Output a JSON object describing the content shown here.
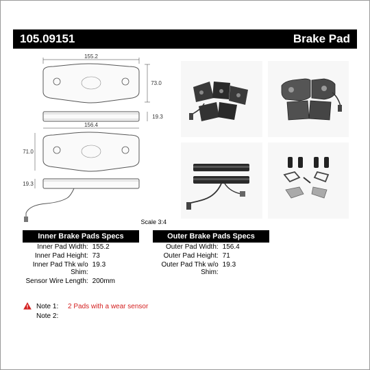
{
  "header": {
    "part_number": "105.09151",
    "product_type": "Brake Pad"
  },
  "diagram": {
    "top_width": "155.2",
    "top_height": "73.0",
    "top_thickness": "19.3",
    "mid_width": "156.4",
    "mid_height": "71.0",
    "bottom_thickness": "19.3",
    "scale": "Scale 3:4"
  },
  "specs": {
    "inner": {
      "title": "Inner Brake Pads Specs",
      "rows": [
        {
          "label": "Inner Pad Width:",
          "value": "155.2"
        },
        {
          "label": "Inner Pad Height:",
          "value": "73"
        },
        {
          "label": "Inner Pad Thk w/o Shim:",
          "value": "19.3"
        },
        {
          "label": "Sensor Wire Length:",
          "value": "200mm"
        }
      ]
    },
    "outer": {
      "title": "Outer Brake Pads Specs",
      "rows": [
        {
          "label": "Outer Pad Width:",
          "value": "156.4"
        },
        {
          "label": "Outer Pad Height:",
          "value": "71"
        },
        {
          "label": "Outer Pad Thk w/o Shim:",
          "value": "19.3"
        }
      ]
    }
  },
  "notes": {
    "note1_label": "Note 1:",
    "note1_value": "2 Pads with a wear sensor",
    "note2_label": "Note 2:",
    "note2_value": ""
  },
  "colors": {
    "header_bg": "#000000",
    "header_text": "#ffffff",
    "note_warn": "#d42020",
    "diagram_stroke": "#555555"
  }
}
